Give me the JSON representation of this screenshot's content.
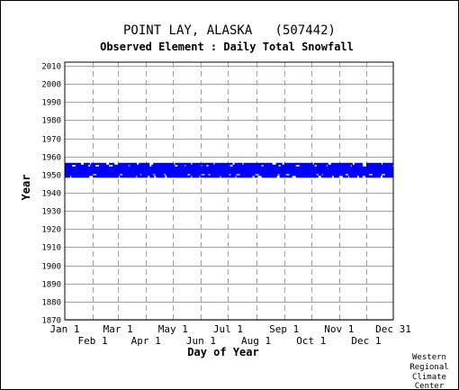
{
  "chart_data": {
    "type": "table",
    "title": "POINT LAY, ALASKA   (507442)",
    "subtitle": "Observed Element : Daily Total Snowfall",
    "xlabel": "Day of Year",
    "ylabel": "Year",
    "credit": [
      "Western",
      "Regional",
      "Climate",
      "Center"
    ],
    "ylim": [
      1870,
      2012
    ],
    "yticks": [
      1870,
      1880,
      1890,
      1900,
      1910,
      1920,
      1930,
      1940,
      1950,
      1960,
      1970,
      1980,
      1990,
      2000,
      2010
    ],
    "xlim": [
      1,
      365
    ],
    "xticks_top": [
      {
        "label": "Jan 1",
        "day": 1
      },
      {
        "label": "Mar 1",
        "day": 60
      },
      {
        "label": "May 1",
        "day": 121
      },
      {
        "label": "Jul 1",
        "day": 182
      },
      {
        "label": "Sep 1",
        "day": 244
      },
      {
        "label": "Nov 1",
        "day": 305
      },
      {
        "label": "Dec 31",
        "day": 365
      }
    ],
    "xticks_bottom": [
      {
        "label": "Feb 1",
        "day": 32
      },
      {
        "label": "Apr 1",
        "day": 91
      },
      {
        "label": "Jun 1",
        "day": 152
      },
      {
        "label": "Aug 1",
        "day": 213
      },
      {
        "label": "Oct 1",
        "day": 274
      },
      {
        "label": "Dec 1",
        "day": 335
      }
    ],
    "series_color": "#0000ff",
    "data_bands": [
      {
        "year": 1956,
        "from": 1,
        "to": 365,
        "coverage": "partial"
      },
      {
        "year": 1955,
        "from": 1,
        "to": 365,
        "coverage": "partial"
      },
      {
        "year": 1954,
        "from": 1,
        "to": 365,
        "coverage": "full"
      },
      {
        "year": 1953,
        "from": 1,
        "to": 365,
        "coverage": "full"
      },
      {
        "year": 1952,
        "from": 1,
        "to": 365,
        "coverage": "full"
      },
      {
        "year": 1951,
        "from": 1,
        "to": 365,
        "coverage": "full"
      },
      {
        "year": 1950,
        "from": 1,
        "to": 365,
        "coverage": "partial"
      },
      {
        "year": 1949,
        "from": 1,
        "to": 365,
        "coverage": "partial"
      }
    ]
  }
}
